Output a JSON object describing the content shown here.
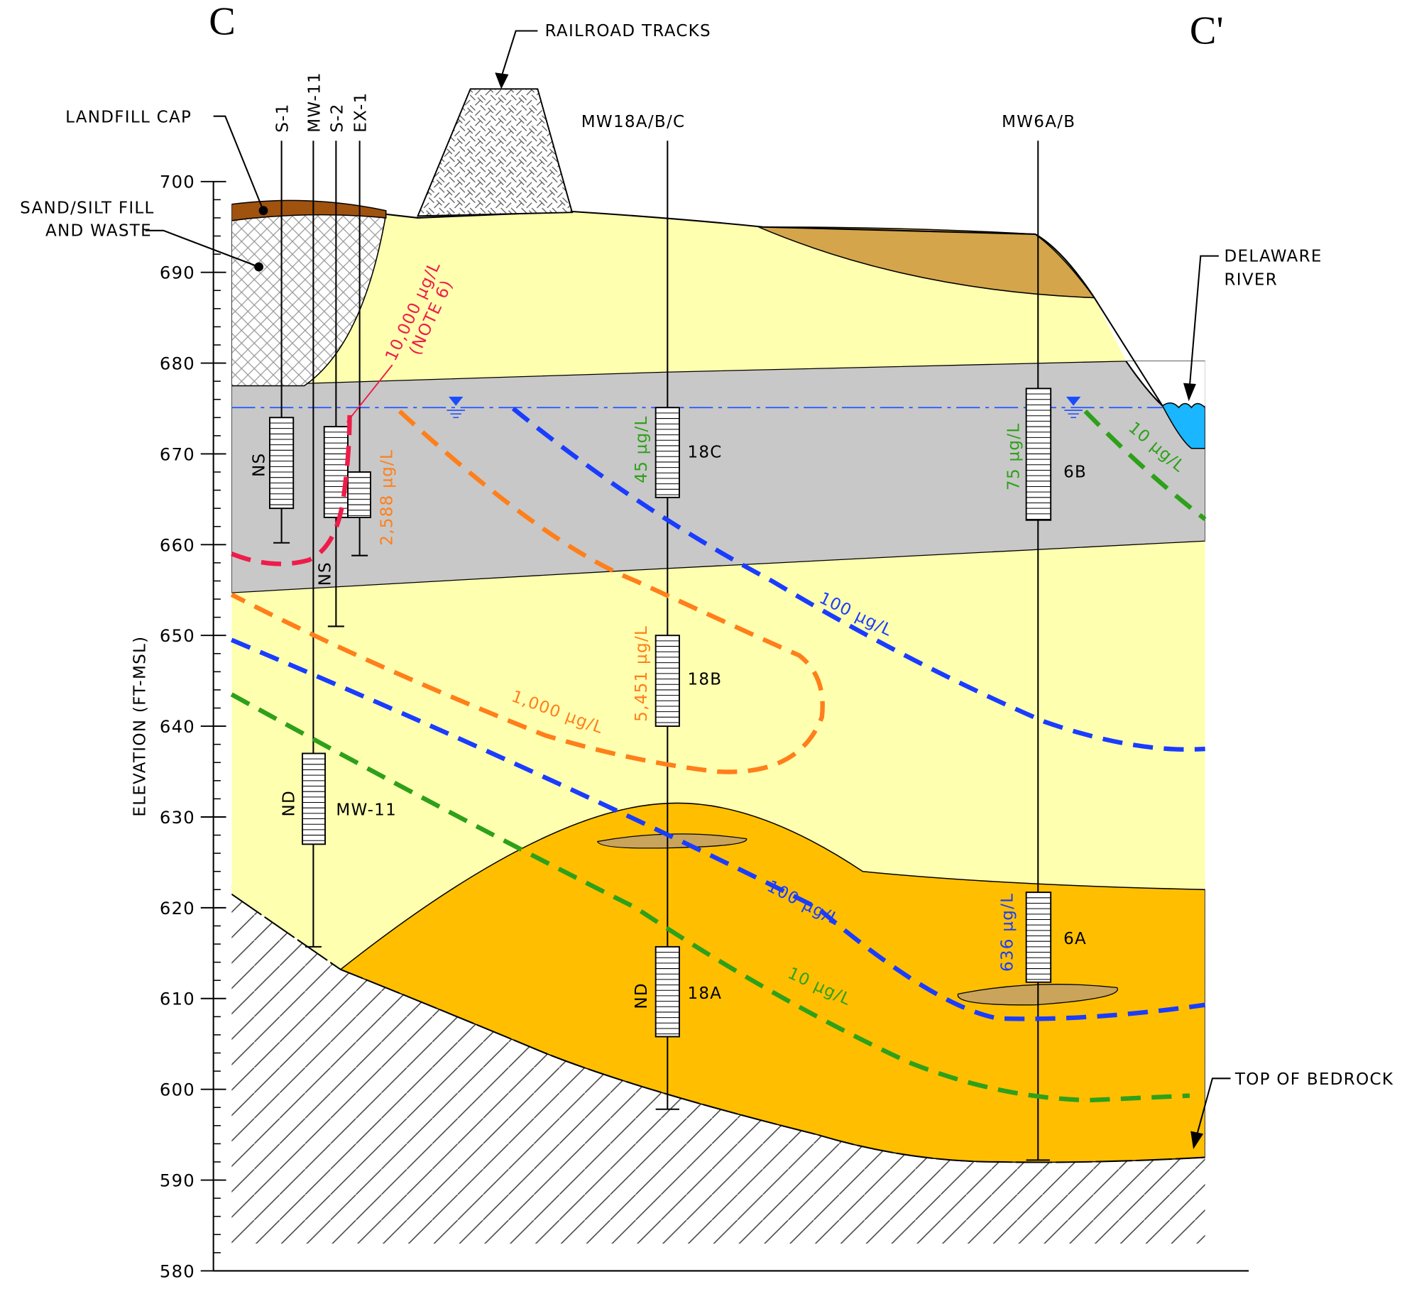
{
  "section": {
    "start": "C",
    "end": "C'"
  },
  "axis": {
    "label": "ELEVATION (FT-MSL)",
    "ylim": [
      580,
      700
    ],
    "ticks": [
      580,
      590,
      600,
      610,
      620,
      630,
      640,
      650,
      660,
      670,
      680,
      690,
      700
    ]
  },
  "callouts": {
    "railroad": "RAILROAD TRACKS",
    "landfill_cap": "LANDFILL CAP",
    "fill": [
      "SAND/SILT FILL",
      "AND WASTE"
    ],
    "river": [
      "DELAWARE",
      "RIVER"
    ],
    "bedrock": "TOP OF BEDROCK"
  },
  "wells": [
    "S-1",
    "MW-11",
    "S-2",
    "EX-1",
    "MW18A/B/C",
    "MW6A/B"
  ],
  "screens": [
    "MW-11",
    "18C",
    "18B",
    "18A",
    "6B",
    "6A"
  ],
  "results": [
    "NS",
    "NS",
    "ND",
    "2,588 µg/L",
    "45 µg/L",
    "5,451 µg/L",
    "ND",
    "75 µg/L",
    "636 µg/L"
  ],
  "contours": {
    "red": [
      "10,000 µg/L",
      "(NOTE 6)"
    ],
    "orange": "1,000 µg/L",
    "blue_upper": "100 µg/L",
    "blue_lower": "100 µg/L",
    "green_lower": "10 µg/L",
    "green_upper": "10 µg/L"
  }
}
